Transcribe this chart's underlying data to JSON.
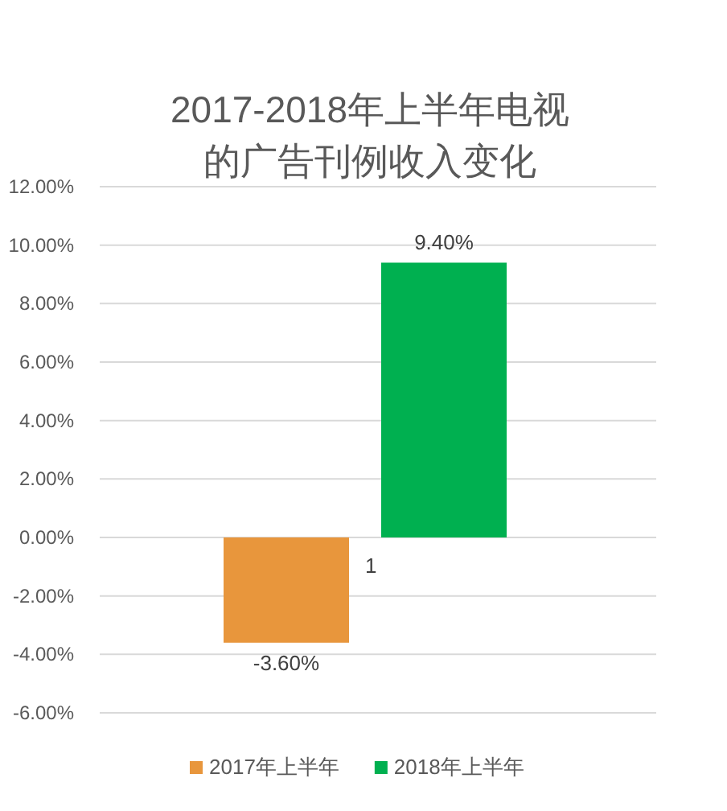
{
  "chart_data": {
    "type": "bar",
    "title": "2017-2018年上半年电视的广告刊例收入变化",
    "categories": [
      null
    ],
    "series": [
      {
        "name": "2017年上半年",
        "color": "#e8963c",
        "values": [
          -3.6
        ],
        "value_labels": [
          "-3.60%"
        ]
      },
      {
        "name": "2018年上半年",
        "color": "#00b050",
        "values": [
          9.4
        ],
        "value_labels": [
          "9.40%"
        ]
      }
    ],
    "ylim": [
      -6,
      12
    ],
    "yticks": [
      {
        "value": -6,
        "label": "-6.00%"
      },
      {
        "value": -4,
        "label": "-4.00%"
      },
      {
        "value": -2,
        "label": "-2.00%"
      },
      {
        "value": 0,
        "label": "0.00%"
      },
      {
        "value": 2,
        "label": "2.00%"
      },
      {
        "value": 4,
        "label": "4.00%"
      },
      {
        "value": 6,
        "label": "6.00%"
      },
      {
        "value": 8,
        "label": "8.00%"
      },
      {
        "value": 10,
        "label": "10.00%"
      },
      {
        "value": 12,
        "label": "12.00%"
      }
    ],
    "grid": "y",
    "legend": "bottom",
    "annotations": [
      "1"
    ]
  }
}
